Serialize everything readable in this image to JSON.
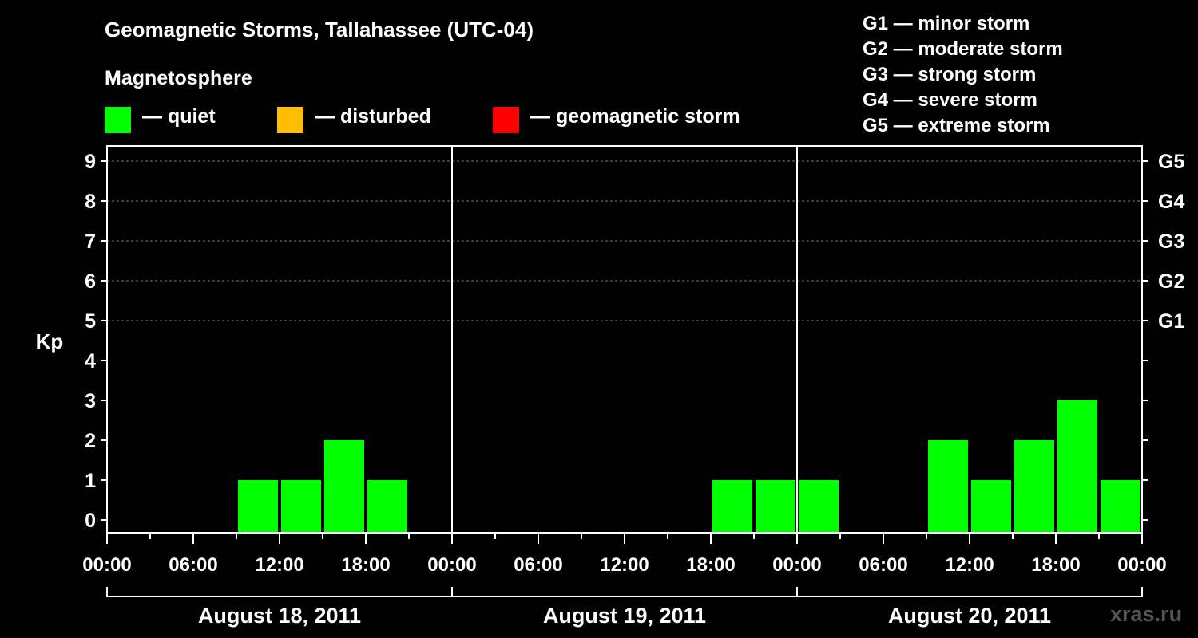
{
  "title": "Geomagnetic Storms, Tallahassee (UTC-04)",
  "legend": {
    "heading": "Magnetosphere",
    "items": [
      {
        "label": "— quiet",
        "color": "#00ff00"
      },
      {
        "label": "— disturbed",
        "color": "#ffbf00"
      },
      {
        "label": "— geomagnetic storm",
        "color": "#ff0000"
      }
    ]
  },
  "storm_scale": [
    "G1 — minor storm",
    "G2 — moderate storm",
    "G3 — strong storm",
    "G4 — severe storm",
    "G5 — extreme storm"
  ],
  "watermark": "xras.ru",
  "chart_data": {
    "type": "bar",
    "ylabel": "Kp",
    "ylim": [
      0,
      9
    ],
    "y_ticks": [
      0,
      1,
      2,
      3,
      4,
      5,
      6,
      7,
      8,
      9
    ],
    "right_axis_labels": [
      {
        "kp": 5,
        "label": "G1"
      },
      {
        "kp": 6,
        "label": "G2"
      },
      {
        "kp": 7,
        "label": "G3"
      },
      {
        "kp": 8,
        "label": "G4"
      },
      {
        "kp": 9,
        "label": "G5"
      }
    ],
    "x_tick_labels": [
      "00:00",
      "06:00",
      "12:00",
      "18:00",
      "00:00",
      "06:00",
      "12:00",
      "18:00",
      "00:00",
      "06:00",
      "12:00",
      "18:00",
      "00:00"
    ],
    "days": [
      "August 18, 2011",
      "August 19, 2011",
      "August 20, 2011"
    ],
    "interval_hours": 3,
    "grid": true,
    "bars": [
      {
        "start": "2011-08-18 09:00",
        "kp": 1,
        "level": "quiet"
      },
      {
        "start": "2011-08-18 12:00",
        "kp": 1,
        "level": "quiet"
      },
      {
        "start": "2011-08-18 15:00",
        "kp": 2,
        "level": "quiet"
      },
      {
        "start": "2011-08-18 18:00",
        "kp": 1,
        "level": "quiet"
      },
      {
        "start": "2011-08-19 18:00",
        "kp": 1,
        "level": "quiet"
      },
      {
        "start": "2011-08-19 21:00",
        "kp": 1,
        "level": "quiet"
      },
      {
        "start": "2011-08-20 00:00",
        "kp": 1,
        "level": "quiet"
      },
      {
        "start": "2011-08-20 09:00",
        "kp": 2,
        "level": "quiet"
      },
      {
        "start": "2011-08-20 12:00",
        "kp": 1,
        "level": "quiet"
      },
      {
        "start": "2011-08-20 15:00",
        "kp": 2,
        "level": "quiet"
      },
      {
        "start": "2011-08-20 18:00",
        "kp": 3,
        "level": "quiet"
      },
      {
        "start": "2011-08-20 21:00",
        "kp": 1,
        "level": "quiet"
      }
    ]
  }
}
